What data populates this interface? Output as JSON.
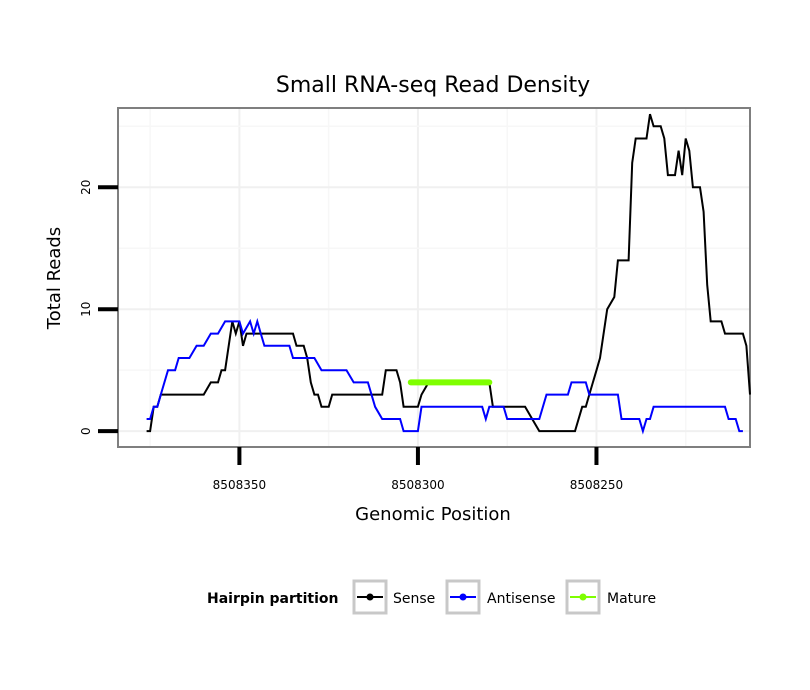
{
  "chart_data": {
    "type": "line",
    "title": "Small RNA-seq Read Density",
    "xlabel": "Genomic Position",
    "ylabel": "Total Reads",
    "xlim": [
      8508384,
      8508207
    ],
    "ylim": [
      -1.3,
      26.5
    ],
    "x_ticks": [
      8508350,
      8508300,
      8508250
    ],
    "x_tick_labels": [
      "8508350",
      "8508300",
      "8508250"
    ],
    "y_ticks": [
      0,
      10,
      20
    ],
    "y_tick_labels": [
      "0",
      "10",
      "20"
    ],
    "grid": true,
    "legend": {
      "title": "Hairpin partition",
      "placement": "bottom",
      "entries": [
        {
          "name": "Sense",
          "color": "#000000"
        },
        {
          "name": "Antisense",
          "color": "#0000ff"
        },
        {
          "name": "Mature",
          "color": "#7fff00"
        }
      ]
    },
    "series": [
      {
        "name": "Sense",
        "color": "#000000",
        "points": [
          [
            8508376,
            0
          ],
          [
            8508375,
            0
          ],
          [
            8508374,
            2
          ],
          [
            8508373,
            2
          ],
          [
            8508372,
            3
          ],
          [
            8508370,
            3
          ],
          [
            8508360,
            3
          ],
          [
            8508358,
            4
          ],
          [
            8508356,
            4
          ],
          [
            8508355,
            5
          ],
          [
            8508354,
            5
          ],
          [
            8508353,
            7
          ],
          [
            8508352,
            9
          ],
          [
            8508351,
            8
          ],
          [
            8508350,
            9
          ],
          [
            8508349,
            7
          ],
          [
            8508348,
            8
          ],
          [
            8508346,
            8
          ],
          [
            8508340,
            8
          ],
          [
            8508335,
            8
          ],
          [
            8508334,
            7
          ],
          [
            8508332,
            7
          ],
          [
            8508331,
            6
          ],
          [
            8508330,
            4
          ],
          [
            8508329,
            3
          ],
          [
            8508328,
            3
          ],
          [
            8508327,
            2
          ],
          [
            8508325,
            2
          ],
          [
            8508324,
            3
          ],
          [
            8508316,
            3
          ],
          [
            8508310,
            3
          ],
          [
            8508309,
            5
          ],
          [
            8508306,
            5
          ],
          [
            8508305,
            4
          ],
          [
            8508304,
            2
          ],
          [
            8508300,
            2
          ],
          [
            8508299,
            3
          ],
          [
            8508297,
            4
          ],
          [
            8508280,
            4
          ],
          [
            8508279,
            2
          ],
          [
            8508270,
            2
          ],
          [
            8508268,
            1
          ],
          [
            8508266,
            0
          ],
          [
            8508256,
            0
          ],
          [
            8508254,
            2
          ],
          [
            8508253,
            2
          ],
          [
            8508252,
            3
          ],
          [
            8508251,
            4
          ],
          [
            8508250,
            5
          ],
          [
            8508249,
            6
          ],
          [
            8508247,
            10
          ],
          [
            8508245,
            11
          ],
          [
            8508244,
            14
          ],
          [
            8508241,
            14
          ],
          [
            8508240,
            22
          ],
          [
            8508239,
            24
          ],
          [
            8508236,
            24
          ],
          [
            8508235,
            26
          ],
          [
            8508234,
            25
          ],
          [
            8508232,
            25
          ],
          [
            8508231,
            24
          ],
          [
            8508230,
            21
          ],
          [
            8508228,
            21
          ],
          [
            8508227,
            23
          ],
          [
            8508226,
            21
          ],
          [
            8508225,
            24
          ],
          [
            8508224,
            23
          ],
          [
            8508223,
            20
          ],
          [
            8508221,
            20
          ],
          [
            8508220,
            18
          ],
          [
            8508219,
            12
          ],
          [
            8508218,
            9
          ],
          [
            8508215,
            9
          ],
          [
            8508214,
            8
          ],
          [
            8508209,
            8
          ],
          [
            8508208,
            7
          ],
          [
            8508207,
            3
          ]
        ]
      },
      {
        "name": "Antisense",
        "color": "#0000ff",
        "points": [
          [
            8508376,
            1
          ],
          [
            8508375,
            1
          ],
          [
            8508374,
            2
          ],
          [
            8508373,
            2
          ],
          [
            8508372,
            3
          ],
          [
            8508370,
            5
          ],
          [
            8508368,
            5
          ],
          [
            8508367,
            6
          ],
          [
            8508364,
            6
          ],
          [
            8508362,
            7
          ],
          [
            8508360,
            7
          ],
          [
            8508358,
            8
          ],
          [
            8508356,
            8
          ],
          [
            8508354,
            9
          ],
          [
            8508350,
            9
          ],
          [
            8508349,
            8
          ],
          [
            8508347,
            9
          ],
          [
            8508346,
            8
          ],
          [
            8508345,
            9
          ],
          [
            8508344,
            8
          ],
          [
            8508343,
            7
          ],
          [
            8508336,
            7
          ],
          [
            8508335,
            6
          ],
          [
            8508329,
            6
          ],
          [
            8508327,
            5
          ],
          [
            8508320,
            5
          ],
          [
            8508318,
            4
          ],
          [
            8508314,
            4
          ],
          [
            8508312,
            2
          ],
          [
            8508310,
            1
          ],
          [
            8508305,
            1
          ],
          [
            8508304,
            0
          ],
          [
            8508300,
            0
          ],
          [
            8508299,
            2
          ],
          [
            8508282,
            2
          ],
          [
            8508281,
            1
          ],
          [
            8508280,
            2
          ],
          [
            8508276,
            2
          ],
          [
            8508275,
            1
          ],
          [
            8508266,
            1
          ],
          [
            8508264,
            3
          ],
          [
            8508258,
            3
          ],
          [
            8508257,
            4
          ],
          [
            8508253,
            4
          ],
          [
            8508252,
            3
          ],
          [
            8508244,
            3
          ],
          [
            8508243,
            1
          ],
          [
            8508238,
            1
          ],
          [
            8508237,
            0
          ],
          [
            8508236,
            1
          ],
          [
            8508235,
            1
          ],
          [
            8508234,
            2
          ],
          [
            8508220,
            2
          ],
          [
            8508214,
            2
          ],
          [
            8508213,
            1
          ],
          [
            8508211,
            1
          ],
          [
            8508210,
            0
          ],
          [
            8508209,
            0
          ]
        ]
      },
      {
        "name": "Mature",
        "color": "#7fff00",
        "points": [
          [
            8508302,
            4
          ],
          [
            8508280,
            4
          ]
        ]
      }
    ]
  }
}
